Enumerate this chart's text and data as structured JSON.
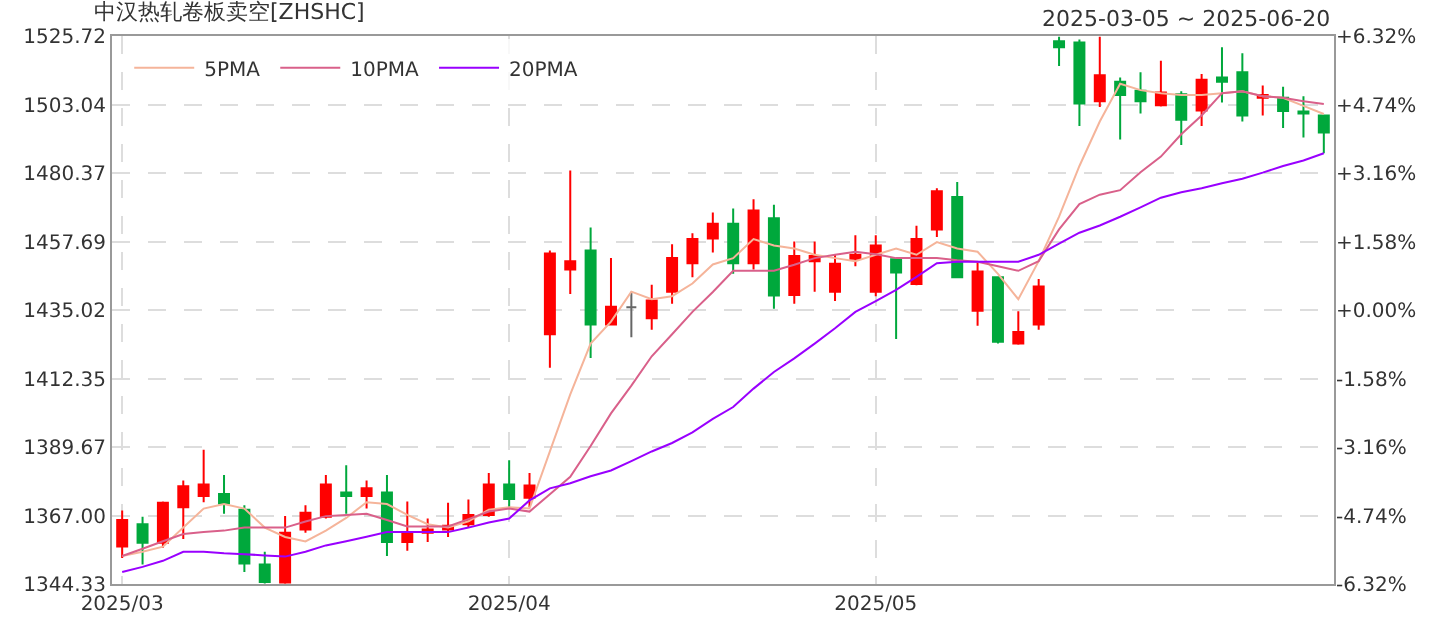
{
  "chart_data": {
    "type": "candlestick",
    "title": "中汉热轧卷板卖空[ZHSHC]",
    "subtitle": "2025-03-05 ~ 2025-06-20",
    "categories": [
      "2025/03",
      null,
      null,
      null,
      null,
      null,
      null,
      null,
      null,
      null,
      null,
      null,
      null,
      null,
      null,
      null,
      null,
      null,
      null,
      "2025/04",
      null,
      null,
      null,
      null,
      null,
      null,
      null,
      null,
      null,
      null,
      null,
      null,
      null,
      null,
      null,
      null,
      null,
      "2025/05",
      null,
      null,
      null,
      null,
      null,
      null,
      null,
      null,
      null,
      null,
      null,
      null,
      null,
      null,
      null,
      null,
      null,
      null,
      null,
      null,
      null,
      null
    ],
    "ohlc": [
      [
        1356.7,
        1368.7,
        1352.9,
        1365.5
      ],
      [
        1364.1,
        1366.6,
        1350.8,
        1358.0
      ],
      [
        1358.0,
        1371.6,
        1356.3,
        1371.2
      ],
      [
        1369.7,
        1378.6,
        1359.2,
        1376.7
      ],
      [
        1373.5,
        1388.8,
        1371.4,
        1377.3
      ],
      [
        1374.1,
        1380.4,
        1367.6,
        1371.0
      ],
      [
        1368.9,
        1370.4,
        1348.3,
        1351.1
      ],
      [
        1350.8,
        1355.0,
        1344.5,
        1345.0
      ],
      [
        1344.8,
        1366.8,
        1344.4,
        1361.3
      ],
      [
        1362.4,
        1370.4,
        1361.3,
        1367.9
      ],
      [
        1366.6,
        1380.4,
        1366.0,
        1377.3
      ],
      [
        1374.6,
        1383.6,
        1367.6,
        1373.5
      ],
      [
        1373.5,
        1378.6,
        1369.3,
        1376.0
      ],
      [
        1374.6,
        1380.4,
        1353.6,
        1358.2
      ],
      [
        1358.2,
        1371.6,
        1355.3,
        1361.3
      ],
      [
        1361.3,
        1366.0,
        1358.2,
        1362.4
      ],
      [
        1362.4,
        1371.2,
        1359.9,
        1363.6
      ],
      [
        1364.1,
        1372.3,
        1363.0,
        1367.2
      ],
      [
        1367.2,
        1381.1,
        1366.6,
        1377.3
      ],
      [
        1377.3,
        1385.3,
        1369.3,
        1372.5
      ],
      [
        1372.9,
        1381.1,
        1369.7,
        1376.9
      ],
      [
        1427.0,
        1454.7,
        1415.9,
        1453.7
      ],
      [
        1448.4,
        1481.2,
        1440.3,
        1451.2
      ],
      [
        1454.7,
        1462.3,
        1419.1,
        1430.2
      ],
      [
        1430.2,
        1452.2,
        1430.2,
        1436.1
      ],
      [
        1435.9,
        1441.1,
        1426.0,
        1435.9
      ],
      [
        1432.3,
        1443.4,
        1428.5,
        1438.2
      ],
      [
        1441.1,
        1456.8,
        1437.1,
        1452.2
      ],
      [
        1450.5,
        1460.4,
        1445.9,
        1458.5
      ],
      [
        1458.7,
        1467.3,
        1454.1,
        1463.6
      ],
      [
        1463.6,
        1468.6,
        1447.0,
        1450.5
      ],
      [
        1450.5,
        1471.7,
        1448.4,
        1468.0
      ],
      [
        1465.4,
        1469.9,
        1435.4,
        1439.8
      ],
      [
        1440.0,
        1457.7,
        1437.1,
        1452.9
      ],
      [
        1451.2,
        1457.7,
        1441.1,
        1452.9
      ],
      [
        1441.1,
        1453.3,
        1438.0,
        1450.3
      ],
      [
        1452.0,
        1459.8,
        1449.5,
        1453.3
      ],
      [
        1441.1,
        1459.8,
        1439.6,
        1456.4
      ],
      [
        1451.8,
        1451.8,
        1425.4,
        1447.4
      ],
      [
        1443.6,
        1462.9,
        1443.2,
        1458.5
      ],
      [
        1461.7,
        1475.3,
        1459.2,
        1474.3
      ],
      [
        1472.4,
        1477.4,
        1445.5,
        1445.9
      ],
      [
        1434.8,
        1450.8,
        1429.8,
        1447.8
      ],
      [
        1445.9,
        1445.9,
        1423.9,
        1424.5
      ],
      [
        1423.9,
        1434.6,
        1423.5,
        1427.7
      ],
      [
        1430.2,
        1445.3,
        1428.5,
        1442.8
      ],
      [
        1524.0,
        1525.5,
        1515.8,
        1522.0
      ],
      [
        1523.6,
        1524.6,
        1495.9,
        1503.4
      ],
      [
        1504.1,
        1525.5,
        1502.2,
        1512.7
      ],
      [
        1510.6,
        1512.0,
        1491.5,
        1506.2
      ],
      [
        1507.6,
        1513.7,
        1500.1,
        1504.1
      ],
      [
        1502.8,
        1517.5,
        1502.4,
        1507.0
      ],
      [
        1506.4,
        1507.4,
        1489.6,
        1498.0
      ],
      [
        1501.1,
        1513.1,
        1495.9,
        1511.2
      ],
      [
        1512.0,
        1522.0,
        1503.7,
        1510.6
      ],
      [
        1513.7,
        1520.0,
        1497.4,
        1499.4
      ],
      [
        1505.3,
        1509.3,
        1499.4,
        1506.2
      ],
      [
        1505.3,
        1508.9,
        1495.3,
        1500.9
      ],
      [
        1500.7,
        1505.8,
        1492.1,
        1500.1
      ],
      [
        1499.4,
        1499.4,
        1486.9,
        1493.8
      ]
    ],
    "colors": [
      "#ff0000",
      "#00a83c",
      "#ff0000",
      "#ff0000",
      "#ff0000",
      "#00a83c",
      "#00a83c",
      "#00a83c",
      "#ff0000",
      "#ff0000",
      "#ff0000",
      "#00a83c",
      "#ff0000",
      "#00a83c",
      "#ff0000",
      "#ff0000",
      "#ff0000",
      "#ff0000",
      "#ff0000",
      "#00a83c",
      "#ff0000",
      "#ff0000",
      "#ff0000",
      "#00a83c",
      "#ff0000",
      "#666666",
      "#ff0000",
      "#ff0000",
      "#ff0000",
      "#ff0000",
      "#00a83c",
      "#ff0000",
      "#00a83c",
      "#ff0000",
      "#ff0000",
      "#ff0000",
      "#ff0000",
      "#ff0000",
      "#00a83c",
      "#ff0000",
      "#ff0000",
      "#00a83c",
      "#ff0000",
      "#00a83c",
      "#ff0000",
      "#ff0000",
      "#00a83c",
      "#00a83c",
      "#ff0000",
      "#00a83c",
      "#00a83c",
      "#ff0000",
      "#00a83c",
      "#ff0000",
      "#00a83c",
      "#00a83c",
      "#ff0000",
      "#00a83c",
      "#00a83c",
      "#00a83c"
    ],
    "series": [
      {
        "type": "line",
        "name": "5PMA",
        "color": "#f5b49a",
        "values": [
          1353.6,
          1355,
          1356.7,
          1363,
          1369.3,
          1370.8,
          1369.3,
          1363,
          1359.9,
          1358.4,
          1362,
          1366.2,
          1371.4,
          1370.8,
          1367.2,
          1364.1,
          1363,
          1365.1,
          1368.9,
          1369.7,
          1369.3,
          1388.2,
          1407.1,
          1423.9,
          1431.2,
          1441.1,
          1438.6,
          1439.6,
          1443.8,
          1450.1,
          1452.2,
          1458.5,
          1456.4,
          1455.4,
          1453.3,
          1452.2,
          1451.2,
          1453.3,
          1455.4,
          1453.3,
          1457.5,
          1455.4,
          1454.3,
          1447.0,
          1438.6,
          1451.2,
          1465.9,
          1482.7,
          1497.4,
          1509.9,
          1507.8,
          1506.8,
          1506.2,
          1506.2,
          1506.8,
          1507.4,
          1505.8,
          1505.3,
          1502.6,
          1499.9
        ]
      },
      {
        "type": "line",
        "name": "10PMA",
        "color": "#d9608a",
        "values": [
          1353.6,
          1356,
          1358.5,
          1360.9,
          1361.5,
          1362,
          1363,
          1363,
          1363,
          1365,
          1366.8,
          1367.2,
          1367.6,
          1365.5,
          1363.4,
          1363.4,
          1363.4,
          1365.8,
          1368.3,
          1369.3,
          1368.3,
          1374,
          1379.8,
          1390,
          1400.8,
          1410,
          1419.7,
          1427,
          1434.4,
          1441,
          1448.0,
          1448.0,
          1448.0,
          1450,
          1452.2,
          1453.3,
          1454.3,
          1453.5,
          1452.2,
          1452.2,
          1452.2,
          1451.5,
          1451,
          1449.5,
          1448.0,
          1451.2,
          1461.7,
          1470.1,
          1473.2,
          1474.7,
          1480.6,
          1485.8,
          1493.2,
          1499.4,
          1506.8,
          1507.4,
          1505.8,
          1505.3,
          1504.1,
          1503.2
        ]
      },
      {
        "type": "line",
        "name": "20PMA",
        "color": "#9900ff",
        "values": [
          1348.3,
          1350,
          1352,
          1355,
          1355,
          1354.5,
          1354.2,
          1353.8,
          1353.4,
          1355,
          1357.1,
          1358.5,
          1360,
          1361.5,
          1361.5,
          1361.5,
          1361.5,
          1363,
          1364.7,
          1366,
          1372,
          1376,
          1377.7,
          1380,
          1381.9,
          1385,
          1388.2,
          1391,
          1394.5,
          1399,
          1402.9,
          1409,
          1414.5,
          1419,
          1423.9,
          1429,
          1434.4,
          1438,
          1441.7,
          1446,
          1450.5,
          1451,
          1451,
          1451,
          1451,
          1453.3,
          1457,
          1460.6,
          1463,
          1465.9,
          1469,
          1472.2,
          1474,
          1475.3,
          1477,
          1478.5,
          1480.5,
          1482.7,
          1484.5,
          1486.9
        ]
      }
    ],
    "ylim": [
      1344.33,
      1525.72
    ],
    "yticks": [
      {
        "value": 1344.33,
        "label": "1344.33"
      },
      {
        "value": 1367.0,
        "label": "1367.00"
      },
      {
        "value": 1389.67,
        "label": "1389.67"
      },
      {
        "value": 1412.35,
        "label": "1412.35"
      },
      {
        "value": 1435.02,
        "label": "1435.02"
      },
      {
        "value": 1457.69,
        "label": "1457.69"
      },
      {
        "value": 1480.37,
        "label": "1480.37"
      },
      {
        "value": 1503.04,
        "label": "1503.04"
      },
      {
        "value": 1525.72,
        "label": "1525.72"
      }
    ],
    "y2lim": [
      -6.32,
      6.32
    ],
    "y2ticks": [
      {
        "value": -6.32,
        "label": "-6.32%"
      },
      {
        "value": -4.74,
        "label": "-4.74%"
      },
      {
        "value": -3.16,
        "label": "-3.16%"
      },
      {
        "value": -1.58,
        "label": "-1.58%"
      },
      {
        "value": 0,
        "label": "+0.00%"
      },
      {
        "value": 1.58,
        "label": "+1.58%"
      },
      {
        "value": 3.16,
        "label": "+3.16%"
      },
      {
        "value": 4.74,
        "label": "+4.74%"
      },
      {
        "value": 6.32,
        "label": "+6.32%"
      }
    ],
    "grid": true,
    "legend": "top left",
    "marker": "none",
    "line_style": "solid"
  }
}
